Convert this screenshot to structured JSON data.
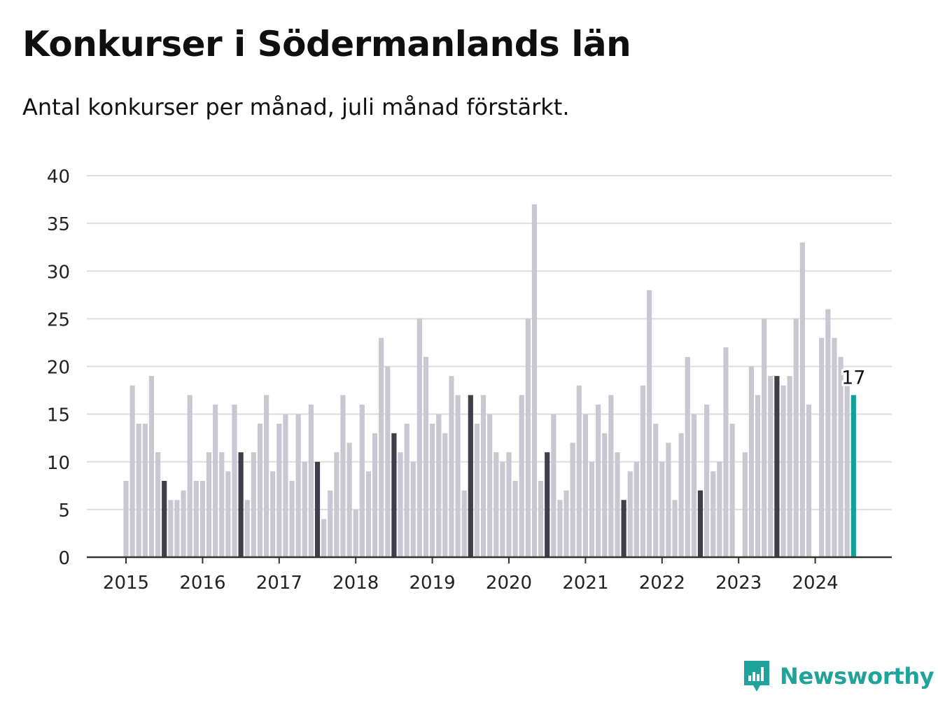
{
  "title": "Konkurser i Södermanlands län",
  "subtitle": "Antal konkurser per månad, juli månad förstärkt.",
  "brand": {
    "name": "Newsworthy",
    "icon": "newsworthy-logo-icon",
    "color": "#1fa39a"
  },
  "colors": {
    "regular": "#c8c8d2",
    "highlight": "#3f3f4b",
    "latest": "#14a094",
    "grid": "#dedede",
    "axis": "#333333"
  },
  "chart_data": {
    "type": "bar",
    "xlabel": "",
    "ylabel": "",
    "ylim": [
      0,
      40
    ],
    "yticks": [
      "0",
      "5",
      "10",
      "15",
      "20",
      "25",
      "30",
      "35",
      "40"
    ],
    "xticks": [
      "2015",
      "2016",
      "2017",
      "2018",
      "2019",
      "2020",
      "2021",
      "2022",
      "2023",
      "2024"
    ],
    "grid": true,
    "highlight": "juli",
    "last_value_label": "17",
    "series": [
      {
        "year": "2015",
        "values": [
          8,
          18,
          14,
          14,
          19,
          11,
          8,
          6,
          6,
          7,
          17,
          8
        ]
      },
      {
        "year": "2016",
        "values": [
          8,
          11,
          16,
          11,
          9,
          16,
          11,
          6,
          11,
          14,
          17,
          9
        ]
      },
      {
        "year": "2017",
        "values": [
          14,
          15,
          8,
          15,
          10,
          16,
          10,
          4,
          7,
          11,
          17,
          12
        ]
      },
      {
        "year": "2018",
        "values": [
          5,
          16,
          9,
          13,
          23,
          20,
          13,
          11,
          14,
          10,
          25,
          21
        ]
      },
      {
        "year": "2019",
        "values": [
          14,
          15,
          13,
          19,
          17,
          7,
          17,
          14,
          17,
          15,
          11,
          10
        ]
      },
      {
        "year": "2020",
        "values": [
          11,
          8,
          17,
          25,
          37,
          8,
          11,
          15,
          6,
          7,
          12,
          18
        ]
      },
      {
        "year": "2021",
        "values": [
          15,
          10,
          16,
          13,
          17,
          11,
          6,
          9,
          10,
          18,
          28,
          14
        ]
      },
      {
        "year": "2022",
        "values": [
          10,
          12,
          6,
          13,
          21,
          15,
          7,
          16,
          9,
          10,
          22,
          14
        ]
      },
      {
        "year": "2023",
        "values": [
          0,
          11,
          20,
          17,
          25,
          19,
          19,
          18,
          19,
          25,
          33,
          16
        ]
      },
      {
        "year": "2024",
        "values": [
          0,
          23,
          26,
          23,
          21,
          18,
          17
        ]
      }
    ]
  }
}
